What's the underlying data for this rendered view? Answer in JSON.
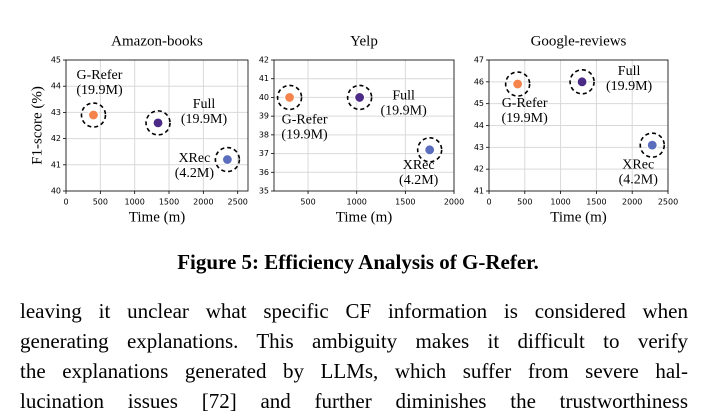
{
  "chart_data": [
    {
      "type": "scatter",
      "title": "Amazon-books",
      "x_label": "Time (m)",
      "y_label": "F1-score (%)",
      "xlim": [
        0,
        2650
      ],
      "xticks": [
        0,
        500,
        1000,
        1500,
        2000,
        2500
      ],
      "ylim": [
        40,
        45
      ],
      "yticks": [
        40,
        41,
        42,
        43,
        44,
        45
      ],
      "grid": true,
      "series": [
        {
          "name": "G-Refer",
          "params": "(19.9M)",
          "color": "#f4844c",
          "x": [
            400
          ],
          "values": [
            42.9
          ]
        },
        {
          "name": "Full",
          "params": "(19.9M)",
          "color": "#4b2a88",
          "x": [
            1340
          ],
          "values": [
            42.6
          ]
        },
        {
          "name": "XRec",
          "params": "(4.2M)",
          "color": "#5b6dbd",
          "x": [
            2350
          ],
          "values": [
            41.2
          ]
        }
      ]
    },
    {
      "type": "scatter",
      "title": "Yelp",
      "x_label": "Time (m)",
      "xlim": [
        150,
        2000
      ],
      "xticks": [
        500,
        1000,
        1500,
        2000
      ],
      "ylim": [
        35,
        42
      ],
      "yticks": [
        35,
        36,
        37,
        38,
        39,
        40,
        41,
        42
      ],
      "grid": true,
      "series": [
        {
          "name": "G-Refer",
          "params": "(19.9M)",
          "color": "#f4844c",
          "x": [
            310
          ],
          "values": [
            40.0
          ]
        },
        {
          "name": "Full",
          "params": "(19.9M)",
          "color": "#4b2a88",
          "x": [
            1030
          ],
          "values": [
            40.0
          ]
        },
        {
          "name": "XRec",
          "params": "(4.2M)",
          "color": "#5b6dbd",
          "x": [
            1750
          ],
          "values": [
            37.2
          ]
        }
      ]
    },
    {
      "type": "scatter",
      "title": "Google-reviews",
      "x_label": "Time (m)",
      "xlim": [
        0,
        2500
      ],
      "xticks": [
        0,
        500,
        1000,
        1500,
        2000,
        2500
      ],
      "ylim": [
        41,
        47
      ],
      "yticks": [
        41,
        42,
        43,
        44,
        45,
        46,
        47
      ],
      "grid": true,
      "series": [
        {
          "name": "G-Refer",
          "params": "(19.9M)",
          "color": "#f4844c",
          "x": [
            400
          ],
          "values": [
            45.9
          ]
        },
        {
          "name": "Full",
          "params": "(19.9M)",
          "color": "#4b2a88",
          "x": [
            1300
          ],
          "values": [
            46.0
          ]
        },
        {
          "name": "XRec",
          "params": "(4.2M)",
          "color": "#5b6dbd",
          "x": [
            2280
          ],
          "values": [
            43.1
          ]
        }
      ]
    }
  ],
  "caption": "Figure 5: Efficiency Analysis of G-Refer.",
  "body": {
    "lines": [
      "leaving it unclear what specific CF information is considered when",
      "generating explanations. This ambiguity makes it difficult to verify",
      "the explanations generated by LLMs, which suffer from severe hal-",
      "lucination issues [72] and further diminishes the trustworthiness"
    ]
  }
}
